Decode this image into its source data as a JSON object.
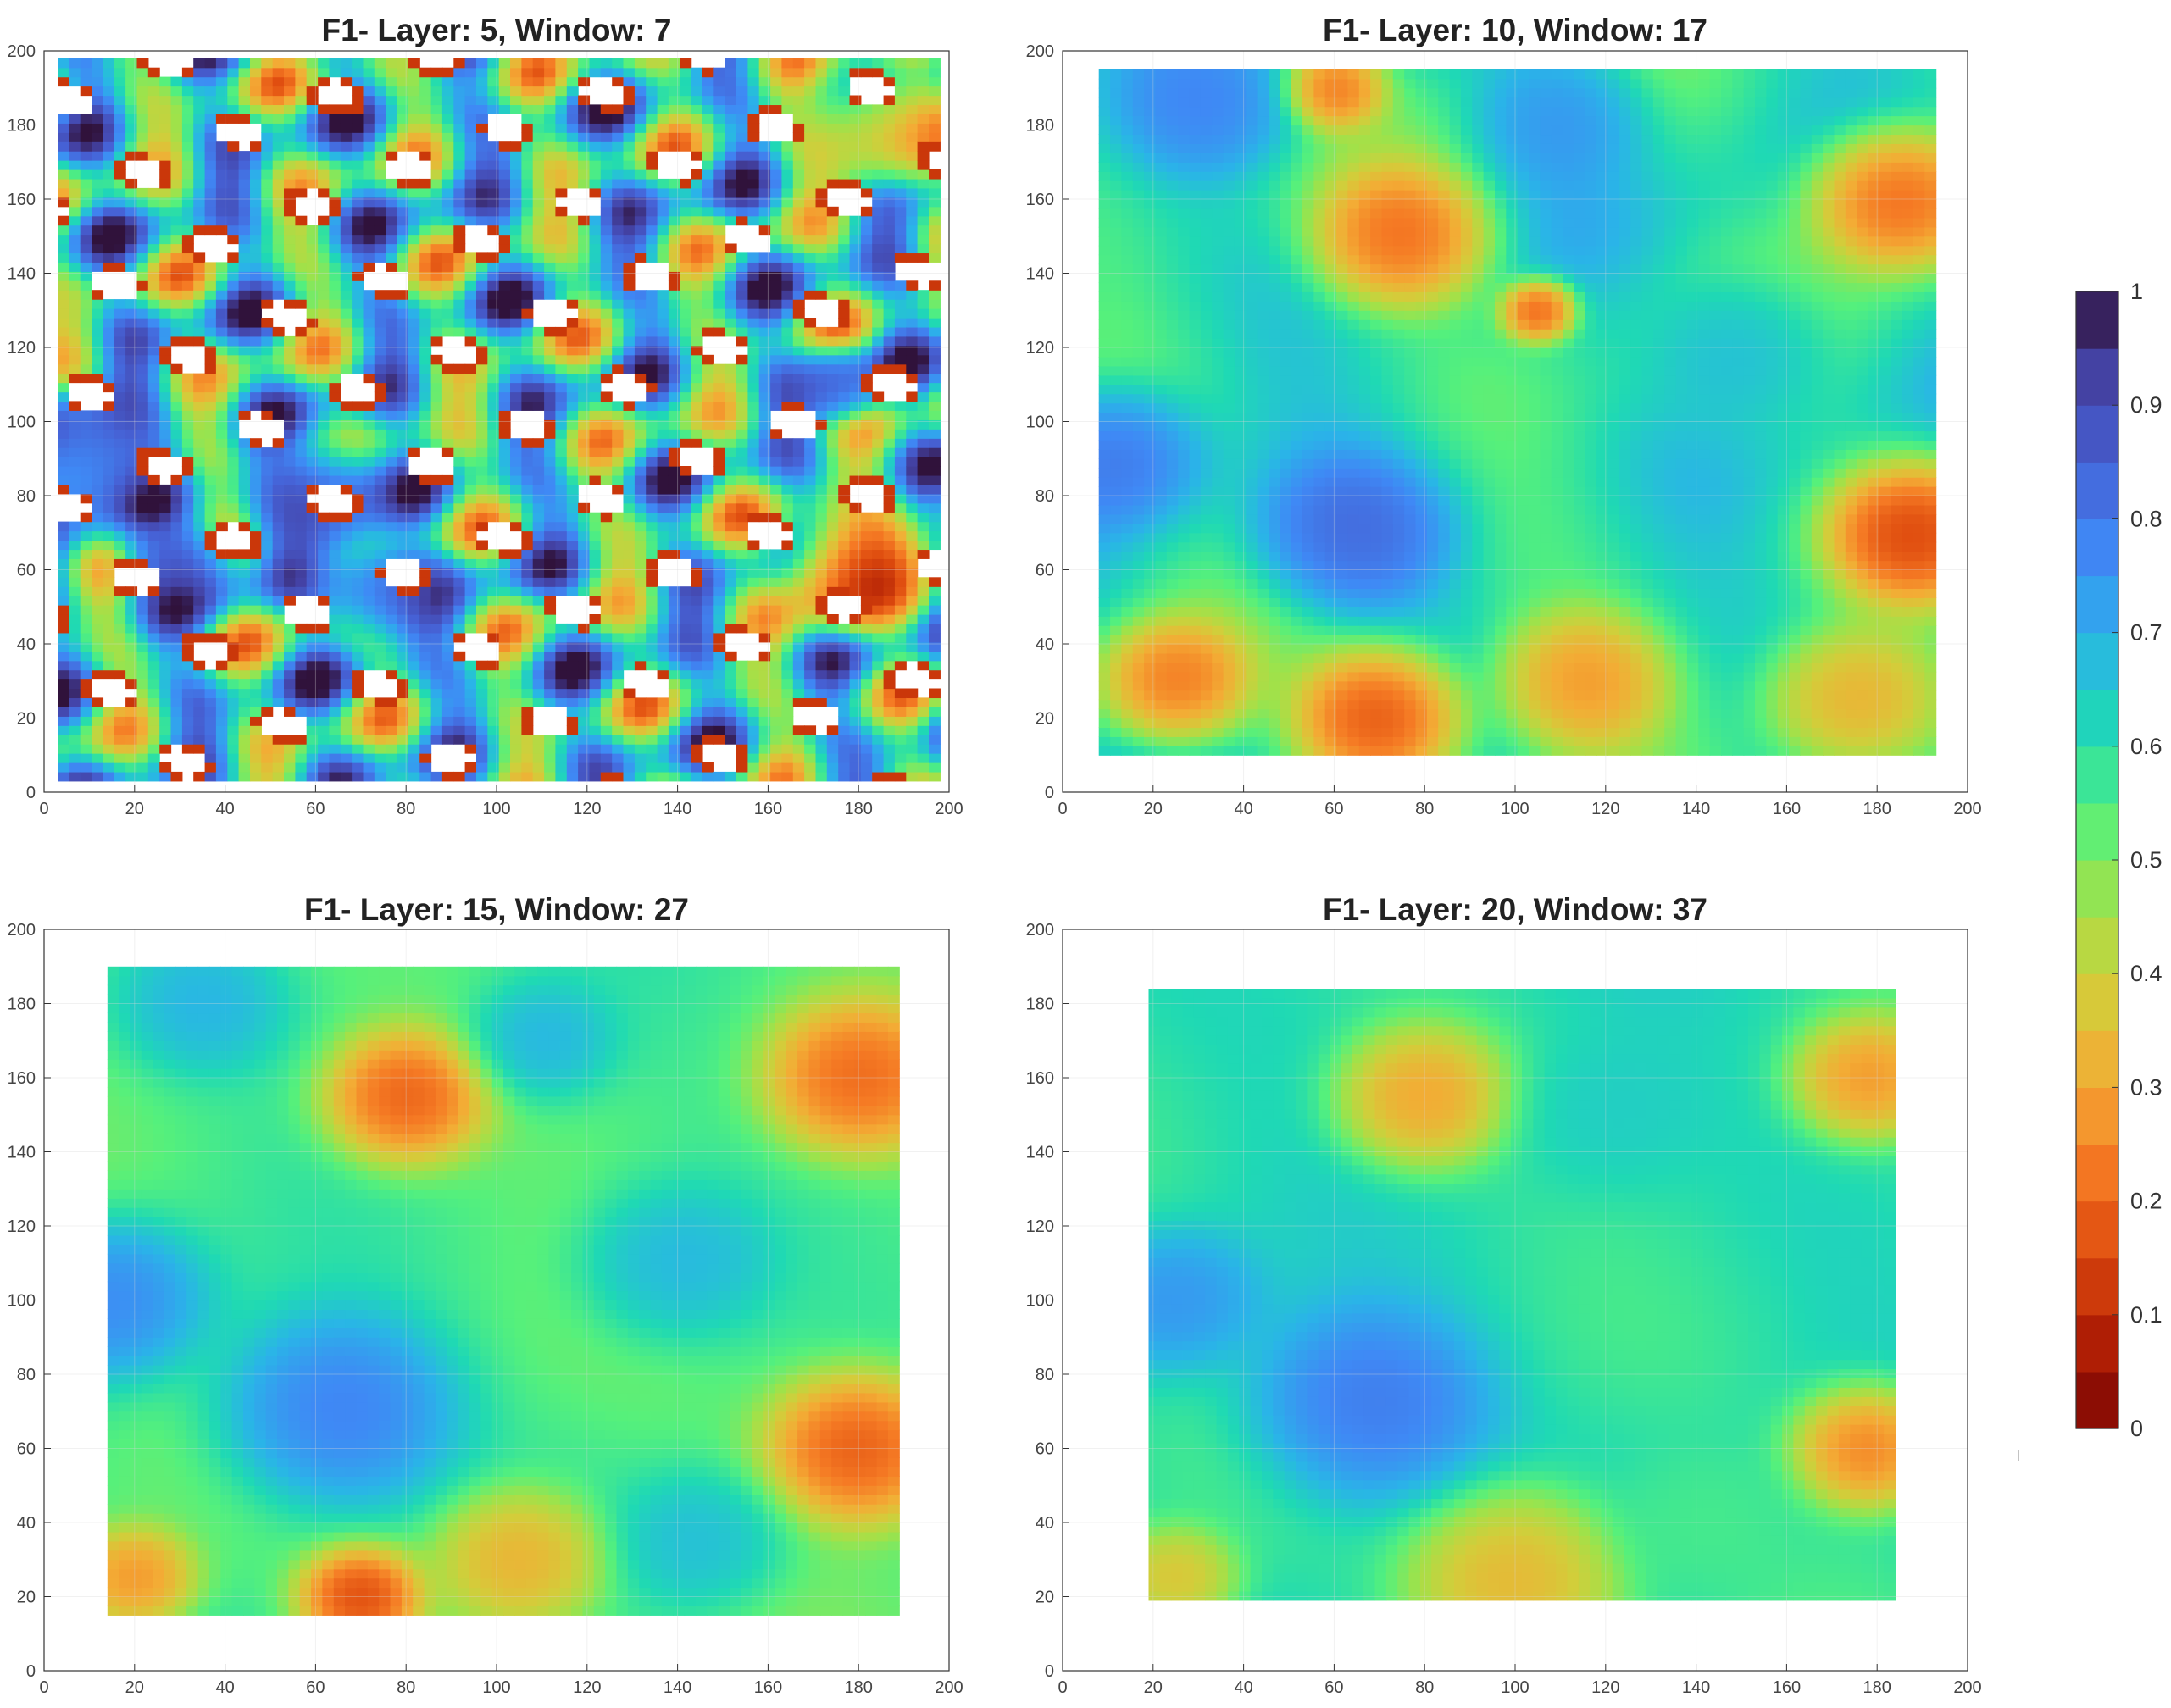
{
  "figure": {
    "colormap": "turbo (reversed: 0 = dark red, 1 = dark blue/purple)",
    "colorbar": {
      "ticks": [
        "0",
        "0.1",
        "0.2",
        "0.3",
        "0.4",
        "0.5",
        "0.6",
        "0.7",
        "0.8",
        "0.9",
        "1"
      ],
      "range": [
        0,
        1
      ],
      "stops": [
        "#7a0403",
        "#b01f05",
        "#de4a0e",
        "#f57a24",
        "#f3ac35",
        "#d3cd3a",
        "#9fe24a",
        "#55f07c",
        "#1fd9b4",
        "#2ab4e8",
        "#3f89f5",
        "#4662d6",
        "#4443a6",
        "#30123b"
      ]
    }
  },
  "chart_data": [
    {
      "type": "heatmap",
      "title": "F1- Layer: 5, Window: 7",
      "xlim": [
        0,
        200
      ],
      "ylim": [
        0,
        200
      ],
      "xticks": [
        "0",
        "20",
        "40",
        "60",
        "80",
        "100",
        "120",
        "140",
        "160",
        "180",
        "200"
      ],
      "yticks": [
        "0",
        "20",
        "40",
        "60",
        "80",
        "100",
        "120",
        "140",
        "160",
        "180",
        "200"
      ],
      "grid": true,
      "data_extent": {
        "x": [
          3,
          198
        ],
        "y": [
          3,
          198
        ]
      },
      "field": {
        "base": 0.62,
        "amp": 0.42,
        "freq": 4.2,
        "gaps": true,
        "features": [
          {
            "x": 10,
            "y": 90,
            "v": 0.98,
            "r": 12
          },
          {
            "x": 30,
            "y": 62,
            "v": 0.95,
            "r": 9
          },
          {
            "x": 62,
            "y": 80,
            "v": 0.92,
            "r": 12
          },
          {
            "x": 75,
            "y": 55,
            "v": 0.9,
            "r": 10
          },
          {
            "x": 175,
            "y": 110,
            "v": 0.88,
            "r": 7
          },
          {
            "x": 180,
            "y": 60,
            "v": 0.05,
            "r": 12
          },
          {
            "x": 185,
            "y": 180,
            "v": 0.3,
            "r": 12
          }
        ]
      }
    },
    {
      "type": "heatmap",
      "title": "F1- Layer: 10, Window: 17",
      "xlim": [
        0,
        200
      ],
      "ylim": [
        0,
        200
      ],
      "xticks": [
        "0",
        "20",
        "40",
        "60",
        "80",
        "100",
        "120",
        "140",
        "160",
        "180",
        "200"
      ],
      "yticks": [
        "0",
        "20",
        "40",
        "60",
        "80",
        "100",
        "120",
        "140",
        "160",
        "180",
        "200"
      ],
      "grid": true,
      "data_extent": {
        "x": [
          8,
          193
        ],
        "y": [
          10,
          193
        ]
      },
      "field": {
        "base": 0.6,
        "amp": 0.1,
        "freq": 1.6,
        "gaps": false,
        "features": [
          {
            "x": 65,
            "y": 70,
            "v": 0.88,
            "r": 16
          },
          {
            "x": 12,
            "y": 90,
            "v": 0.85,
            "r": 14
          },
          {
            "x": 32,
            "y": 185,
            "v": 0.8,
            "r": 14
          },
          {
            "x": 110,
            "y": 182,
            "v": 0.78,
            "r": 14
          },
          {
            "x": 75,
            "y": 150,
            "v": 0.12,
            "r": 14
          },
          {
            "x": 188,
            "y": 70,
            "v": 0.05,
            "r": 14
          },
          {
            "x": 70,
            "y": 20,
            "v": 0.05,
            "r": 14
          },
          {
            "x": 25,
            "y": 30,
            "v": 0.15,
            "r": 12
          },
          {
            "x": 115,
            "y": 30,
            "v": 0.2,
            "r": 14
          },
          {
            "x": 185,
            "y": 160,
            "v": 0.1,
            "r": 14
          },
          {
            "x": 60,
            "y": 190,
            "v": 0.15,
            "r": 8
          },
          {
            "x": 105,
            "y": 130,
            "v": 0.1,
            "r": 6
          },
          {
            "x": 175,
            "y": 25,
            "v": 0.25,
            "r": 14
          },
          {
            "x": 150,
            "y": 120,
            "v": 0.7,
            "r": 14
          }
        ]
      }
    },
    {
      "type": "heatmap",
      "title": "F1- Layer: 15, Window: 27",
      "xlim": [
        0,
        200
      ],
      "ylim": [
        0,
        200
      ],
      "xticks": [
        "0",
        "20",
        "40",
        "60",
        "80",
        "100",
        "120",
        "140",
        "160",
        "180",
        "200"
      ],
      "yticks": [
        "0",
        "20",
        "40",
        "60",
        "80",
        "100",
        "120",
        "140",
        "160",
        "180",
        "200"
      ],
      "grid": true,
      "data_extent": {
        "x": [
          14,
          188
        ],
        "y": [
          15,
          188
        ]
      },
      "field": {
        "base": 0.55,
        "amp": 0.05,
        "freq": 1.2,
        "gaps": false,
        "features": [
          {
            "x": 65,
            "y": 70,
            "v": 0.85,
            "r": 20
          },
          {
            "x": 15,
            "y": 100,
            "v": 0.82,
            "r": 16
          },
          {
            "x": 80,
            "y": 155,
            "v": 0.1,
            "r": 13
          },
          {
            "x": 180,
            "y": 60,
            "v": 0.08,
            "r": 15
          },
          {
            "x": 180,
            "y": 160,
            "v": 0.12,
            "r": 15
          },
          {
            "x": 70,
            "y": 20,
            "v": 0.05,
            "r": 10
          },
          {
            "x": 105,
            "y": 30,
            "v": 0.25,
            "r": 14
          },
          {
            "x": 20,
            "y": 25,
            "v": 0.2,
            "r": 10
          },
          {
            "x": 145,
            "y": 35,
            "v": 0.7,
            "r": 14
          },
          {
            "x": 110,
            "y": 170,
            "v": 0.72,
            "r": 12
          },
          {
            "x": 140,
            "y": 110,
            "v": 0.72,
            "r": 16
          },
          {
            "x": 35,
            "y": 180,
            "v": 0.72,
            "r": 14
          }
        ]
      }
    },
    {
      "type": "heatmap",
      "title": "F1- Layer: 20, Window: 37",
      "xlim": [
        0,
        200
      ],
      "ylim": [
        0,
        200
      ],
      "xticks": [
        "0",
        "20",
        "40",
        "60",
        "80",
        "100",
        "120",
        "140",
        "160",
        "180",
        "200"
      ],
      "yticks": [
        "0",
        "20",
        "40",
        "60",
        "80",
        "100",
        "120",
        "140",
        "160",
        "180",
        "200"
      ],
      "grid": true,
      "data_extent": {
        "x": [
          19,
          183
        ],
        "y": [
          19,
          183
        ]
      },
      "field": {
        "base": 0.6,
        "amp": 0.05,
        "freq": 1.2,
        "gaps": false,
        "features": [
          {
            "x": 68,
            "y": 72,
            "v": 0.85,
            "r": 20
          },
          {
            "x": 25,
            "y": 100,
            "v": 0.78,
            "r": 14
          },
          {
            "x": 80,
            "y": 155,
            "v": 0.22,
            "r": 14
          },
          {
            "x": 178,
            "y": 60,
            "v": 0.15,
            "r": 12
          },
          {
            "x": 178,
            "y": 160,
            "v": 0.2,
            "r": 12
          },
          {
            "x": 100,
            "y": 25,
            "v": 0.25,
            "r": 18
          },
          {
            "x": 25,
            "y": 25,
            "v": 0.3,
            "r": 10
          },
          {
            "x": 140,
            "y": 40,
            "v": 0.55,
            "r": 14
          },
          {
            "x": 120,
            "y": 150,
            "v": 0.65,
            "r": 16
          }
        ]
      }
    }
  ]
}
